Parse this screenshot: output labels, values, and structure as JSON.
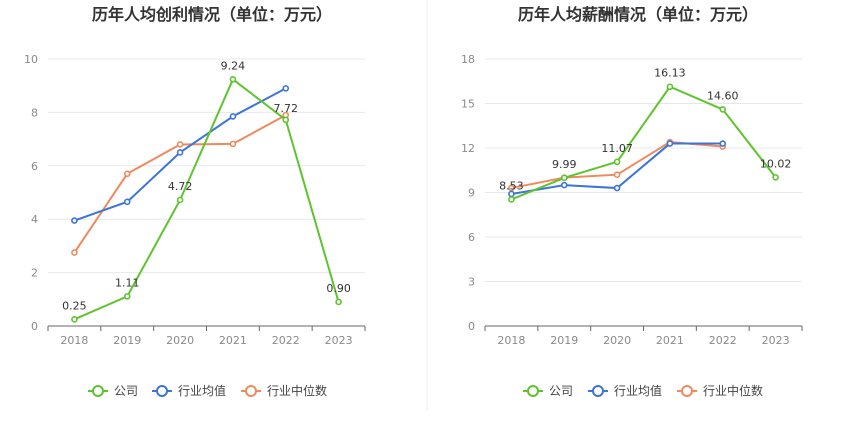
{
  "colors": {
    "company": "#5ec42e",
    "industry_avg": "#3d74d8",
    "industry_median": "#ee8a5e",
    "grid": "#e6e8f0",
    "axis": "#666666",
    "divider": "#eeeeee"
  },
  "legend": {
    "company": "公司",
    "industry_avg": "行业均值",
    "industry_median": "行业中位数"
  },
  "chart_data": [
    {
      "type": "line",
      "title": "历年人均创利情况（单位：万元）",
      "categories": [
        "2018",
        "2019",
        "2020",
        "2021",
        "2022",
        "2023"
      ],
      "ylim": [
        0,
        10
      ],
      "yticks": [
        0,
        2,
        4,
        6,
        8,
        10
      ],
      "grid": true,
      "legend_position": "bottom",
      "series": [
        {
          "name": "公司",
          "values": [
            0.25,
            1.11,
            4.72,
            9.24,
            7.72,
            0.9
          ],
          "labels": [
            "0.25",
            "1.11",
            "4.72",
            "9.24",
            "7.72",
            "0.90"
          ]
        },
        {
          "name": "行业均值",
          "values": [
            3.95,
            4.65,
            6.5,
            7.85,
            8.9,
            null
          ]
        },
        {
          "name": "行业中位数",
          "values": [
            2.75,
            5.7,
            6.8,
            6.82,
            7.9,
            null
          ]
        }
      ]
    },
    {
      "type": "line",
      "title": "历年人均薪酬情况（单位：万元）",
      "categories": [
        "2018",
        "2019",
        "2020",
        "2021",
        "2022",
        "2023"
      ],
      "ylim": [
        0,
        18
      ],
      "yticks": [
        0,
        3,
        6,
        9,
        12,
        15,
        18
      ],
      "grid": true,
      "legend_position": "bottom",
      "series": [
        {
          "name": "公司",
          "values": [
            8.53,
            9.99,
            11.07,
            16.13,
            14.6,
            10.02
          ],
          "labels": [
            "8.53",
            "9.99",
            "11.07",
            "16.13",
            "14.60",
            "10.02"
          ]
        },
        {
          "name": "行业均值",
          "values": [
            8.9,
            9.5,
            9.3,
            12.3,
            12.3,
            null
          ]
        },
        {
          "name": "行业中位数",
          "values": [
            9.3,
            10.0,
            10.2,
            12.4,
            12.1,
            null
          ]
        }
      ]
    }
  ]
}
